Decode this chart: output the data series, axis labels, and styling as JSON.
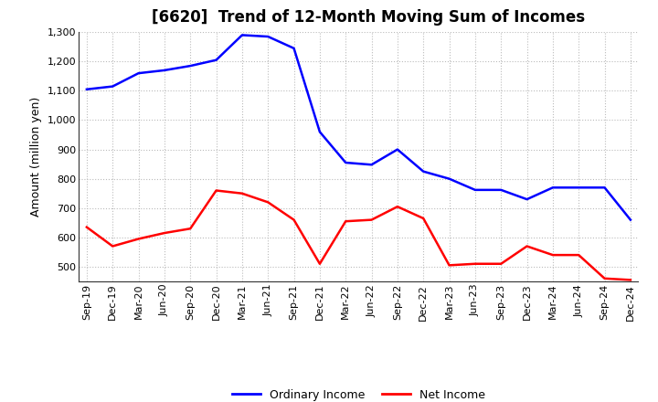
{
  "title": "[6620]  Trend of 12-Month Moving Sum of Incomes",
  "ylabel": "Amount (million yen)",
  "x_labels": [
    "Sep-19",
    "Dec-19",
    "Mar-20",
    "Jun-20",
    "Sep-20",
    "Dec-20",
    "Mar-21",
    "Jun-21",
    "Sep-21",
    "Dec-21",
    "Mar-22",
    "Jun-22",
    "Sep-22",
    "Dec-22",
    "Mar-23",
    "Jun-23",
    "Sep-23",
    "Dec-23",
    "Mar-24",
    "Jun-24",
    "Sep-24",
    "Dec-24"
  ],
  "ordinary_income": [
    1105,
    1115,
    1160,
    1170,
    1185,
    1205,
    1290,
    1285,
    1245,
    960,
    855,
    848,
    900,
    825,
    800,
    762,
    762,
    730,
    770,
    770,
    770,
    660
  ],
  "net_income": [
    635,
    570,
    595,
    615,
    630,
    760,
    750,
    720,
    660,
    510,
    655,
    660,
    705,
    665,
    505,
    510,
    510,
    570,
    540,
    540,
    460,
    455
  ],
  "ordinary_color": "#0000ff",
  "net_color": "#ff0000",
  "ylim_min": 450,
  "ylim_max": 1300,
  "yticks": [
    500,
    600,
    700,
    800,
    900,
    1000,
    1100,
    1200,
    1300
  ],
  "background_color": "#ffffff",
  "grid_color": "#bbbbbb",
  "title_fontsize": 12,
  "axis_label_fontsize": 9,
  "tick_fontsize": 8,
  "legend_labels": [
    "Ordinary Income",
    "Net Income"
  ],
  "line_width": 1.8
}
